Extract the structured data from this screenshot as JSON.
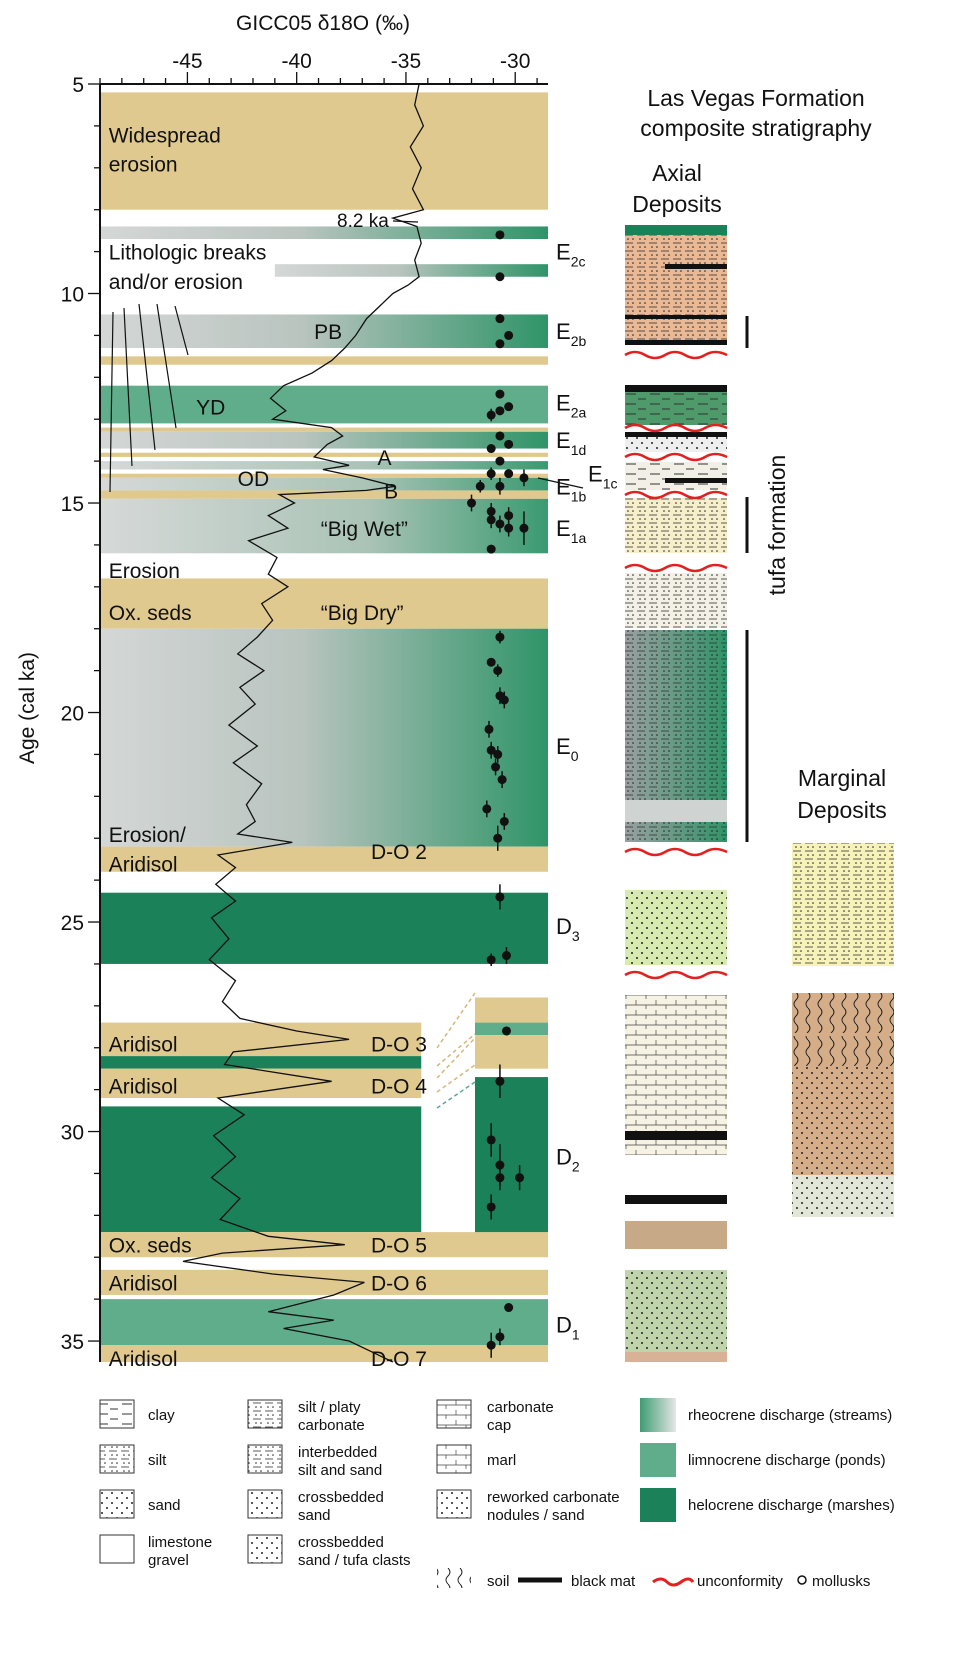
{
  "chart_data": {
    "type": "line",
    "title": "",
    "xlabel": "GICC05 δ18O (‰)",
    "ylabel": "Age (cal ka)",
    "xlim": [
      -49,
      -28.5
    ],
    "ylim": [
      5,
      35.5
    ],
    "x_ticks": [
      "-45",
      "-40",
      "-35",
      "-30"
    ],
    "y_ticks": [
      "5",
      "10",
      "15",
      "20",
      "25",
      "30",
      "35"
    ],
    "bands": [
      {
        "y0": 5.2,
        "y1": 8.0,
        "kind": "tan",
        "label": "Widespread erosion"
      },
      {
        "y0": 8.4,
        "y1": 8.7,
        "kind": "grad-dark",
        "x0": -49
      },
      {
        "y0": 9.3,
        "y1": 9.6,
        "kind": "grad-dark",
        "x0": -41
      },
      {
        "y0": 10.5,
        "y1": 11.3,
        "kind": "grad-dark"
      },
      {
        "y0": 11.5,
        "y1": 11.7,
        "kind": "tan"
      },
      {
        "y0": 12.2,
        "y1": 13.1,
        "kind": "limno"
      },
      {
        "y0": 13.2,
        "y1": 13.3,
        "kind": "tan"
      },
      {
        "y0": 13.3,
        "y1": 13.7,
        "kind": "grad-dark"
      },
      {
        "y0": 13.8,
        "y1": 13.9,
        "kind": "tan"
      },
      {
        "y0": 14.0,
        "y1": 14.2,
        "kind": "grad-light"
      },
      {
        "y0": 14.3,
        "y1": 14.4,
        "kind": "tan"
      },
      {
        "y0": 14.4,
        "y1": 14.7,
        "kind": "grad-light"
      },
      {
        "y0": 14.7,
        "y1": 14.9,
        "kind": "tan"
      },
      {
        "y0": 14.9,
        "y1": 16.2,
        "kind": "grad-light"
      },
      {
        "y0": 16.8,
        "y1": 18.0,
        "kind": "tan"
      },
      {
        "y0": 18.0,
        "y1": 23.2,
        "kind": "grad-dark"
      },
      {
        "y0": 23.2,
        "y1": 23.8,
        "kind": "tan"
      },
      {
        "y0": 24.3,
        "y1": 26.0,
        "kind": "helo"
      },
      {
        "y0": 27.4,
        "y1": 28.2,
        "kind": "tan",
        "x1": -34.3
      },
      {
        "y0": 28.2,
        "y1": 28.5,
        "kind": "helo",
        "x1": -34.3
      },
      {
        "y0": 28.5,
        "y1": 29.2,
        "kind": "tan",
        "x1": -34.3
      },
      {
        "y0": 29.4,
        "y1": 32.4,
        "kind": "helo",
        "x1": -34.3
      },
      {
        "y0": 32.4,
        "y1": 33.0,
        "kind": "tan"
      },
      {
        "y0": 33.3,
        "y1": 33.9,
        "kind": "tan"
      },
      {
        "y0": 34.0,
        "y1": 35.1,
        "kind": "limno"
      },
      {
        "y0": 35.1,
        "y1": 35.5,
        "kind": "tan"
      }
    ],
    "inset_bands": [
      {
        "y0": 26.8,
        "y1": 27.4,
        "kind": "tan"
      },
      {
        "y0": 27.4,
        "y1": 27.7,
        "kind": "limno"
      },
      {
        "y0": 27.7,
        "y1": 28.5,
        "kind": "tan"
      },
      {
        "y0": 28.7,
        "y1": 32.4,
        "kind": "helo"
      }
    ],
    "band_labels": [
      {
        "text": "Widespread",
        "x": -48.6,
        "y": 6.2
      },
      {
        "text": "erosion",
        "x": -48.6,
        "y": 6.9
      },
      {
        "text": "Lithologic breaks",
        "x": -48.6,
        "y": 9.0
      },
      {
        "text": "and/or erosion",
        "x": -48.6,
        "y": 9.7
      },
      {
        "text": "PB",
        "x": -39.2,
        "y": 10.9
      },
      {
        "text": "YD",
        "x": -44.6,
        "y": 12.7
      },
      {
        "text": "A",
        "x": -36.3,
        "y": 13.9
      },
      {
        "text": "OD",
        "x": -42.7,
        "y": 14.4
      },
      {
        "text": "B",
        "x": -36.0,
        "y": 14.7
      },
      {
        "text": "“Big Wet”",
        "x": -38.9,
        "y": 15.6
      },
      {
        "text": "Erosion",
        "x": -48.6,
        "y": 16.6
      },
      {
        "text": "Ox. seds",
        "x": -48.6,
        "y": 17.6
      },
      {
        "text": "“Big Dry”",
        "x": -38.9,
        "y": 17.6
      },
      {
        "text": "Erosion/",
        "x": -48.6,
        "y": 22.9
      },
      {
        "text": "Aridisol",
        "x": -48.6,
        "y": 23.6
      },
      {
        "text": "D-O 2",
        "x": -36.6,
        "y": 23.3
      },
      {
        "text": "Aridisol",
        "x": -48.6,
        "y": 27.9
      },
      {
        "text": "D-O 3",
        "x": -36.6,
        "y": 27.9
      },
      {
        "text": "Aridisol",
        "x": -48.6,
        "y": 28.9
      },
      {
        "text": "D-O 4",
        "x": -36.6,
        "y": 28.9
      },
      {
        "text": "Ox. seds",
        "x": -48.6,
        "y": 32.7
      },
      {
        "text": "D-O 5",
        "x": -36.6,
        "y": 32.7
      },
      {
        "text": "Aridisol",
        "x": -48.6,
        "y": 33.6
      },
      {
        "text": "D-O 6",
        "x": -36.6,
        "y": 33.6
      },
      {
        "text": "Aridisol",
        "x": -48.6,
        "y": 35.4
      },
      {
        "text": "D-O 7",
        "x": -36.6,
        "y": 35.4
      }
    ],
    "event_labels": [
      {
        "main": "E",
        "sub": "2c",
        "y": 9.0
      },
      {
        "main": "E",
        "sub": "2b",
        "y": 10.9
      },
      {
        "main": "E",
        "sub": "2a",
        "y": 12.6
      },
      {
        "main": "E",
        "sub": "1d",
        "y": 13.5
      },
      {
        "main": "E",
        "sub": "1c",
        "y": 14.3
      },
      {
        "main": "E",
        "sub": "1b",
        "y": 14.6
      },
      {
        "main": "E",
        "sub": "1a",
        "y": 15.6
      },
      {
        "main": "E",
        "sub": "0",
        "y": 20.8
      },
      {
        "main": "D",
        "sub": "3",
        "y": 25.1
      },
      {
        "main": "D",
        "sub": "2",
        "y": 30.6
      },
      {
        "main": "D",
        "sub": "1",
        "y": 34.6
      }
    ],
    "annotation_82": "8.2 ka",
    "series": [
      {
        "kind": "isotope",
        "points": [
          [
            -34.4,
            5.0
          ],
          [
            -34.6,
            5.5
          ],
          [
            -34.2,
            6.0
          ],
          [
            -34.8,
            6.5
          ],
          [
            -34.3,
            7.0
          ],
          [
            -34.7,
            7.5
          ],
          [
            -34.2,
            8.0
          ],
          [
            -35.6,
            8.2
          ],
          [
            -34.5,
            8.4
          ],
          [
            -34.3,
            8.8
          ],
          [
            -34.6,
            9.2
          ],
          [
            -34.4,
            9.6
          ],
          [
            -34.9,
            9.8
          ],
          [
            -35.6,
            10.0
          ],
          [
            -36.2,
            10.3
          ],
          [
            -36.8,
            10.6
          ],
          [
            -37.3,
            11.0
          ],
          [
            -37.8,
            11.3
          ],
          [
            -38.4,
            11.6
          ],
          [
            -39.3,
            11.9
          ],
          [
            -40.6,
            12.2
          ],
          [
            -41.2,
            12.5
          ],
          [
            -40.5,
            12.8
          ],
          [
            -41.1,
            13.0
          ],
          [
            -38.4,
            13.2
          ],
          [
            -37.9,
            13.4
          ],
          [
            -38.6,
            13.6
          ],
          [
            -39.2,
            13.9
          ],
          [
            -37.6,
            14.1
          ],
          [
            -38.8,
            14.2
          ],
          [
            -37.0,
            14.4
          ],
          [
            -35.5,
            14.6
          ],
          [
            -36.8,
            14.7
          ],
          [
            -40.8,
            14.8
          ],
          [
            -40.1,
            15.0
          ],
          [
            -41.3,
            15.3
          ],
          [
            -40.4,
            15.6
          ],
          [
            -42.2,
            15.9
          ],
          [
            -40.9,
            16.3
          ],
          [
            -41.3,
            16.7
          ],
          [
            -40.4,
            17.0
          ],
          [
            -41.6,
            17.4
          ],
          [
            -41.1,
            17.8
          ],
          [
            -41.8,
            18.2
          ],
          [
            -42.7,
            18.6
          ],
          [
            -41.5,
            19.0
          ],
          [
            -42.6,
            19.4
          ],
          [
            -41.9,
            19.8
          ],
          [
            -43.1,
            20.3
          ],
          [
            -41.8,
            20.8
          ],
          [
            -42.9,
            21.2
          ],
          [
            -41.6,
            21.7
          ],
          [
            -42.3,
            22.2
          ],
          [
            -41.9,
            22.6
          ],
          [
            -42.7,
            22.9
          ],
          [
            -40.2,
            23.1
          ],
          [
            -43.6,
            23.4
          ],
          [
            -42.8,
            23.7
          ],
          [
            -43.7,
            24.1
          ],
          [
            -42.8,
            24.5
          ],
          [
            -43.9,
            24.9
          ],
          [
            -43.1,
            25.4
          ],
          [
            -44.0,
            25.9
          ],
          [
            -42.8,
            26.4
          ],
          [
            -43.4,
            26.9
          ],
          [
            -42.6,
            27.3
          ],
          [
            -40.0,
            27.6
          ],
          [
            -37.6,
            27.8
          ],
          [
            -42.9,
            28.1
          ],
          [
            -43.3,
            28.4
          ],
          [
            -38.4,
            28.8
          ],
          [
            -43.6,
            29.2
          ],
          [
            -42.4,
            29.6
          ],
          [
            -43.8,
            30.1
          ],
          [
            -42.8,
            30.6
          ],
          [
            -43.9,
            31.1
          ],
          [
            -42.6,
            31.6
          ],
          [
            -43.5,
            32.1
          ],
          [
            -41.3,
            32.5
          ],
          [
            -37.8,
            32.7
          ],
          [
            -43.4,
            32.9
          ],
          [
            -45.2,
            33.1
          ],
          [
            -41.1,
            33.4
          ],
          [
            -36.9,
            33.6
          ],
          [
            -38.3,
            33.9
          ],
          [
            -41.3,
            34.3
          ],
          [
            -38.3,
            34.5
          ],
          [
            -40.6,
            34.7
          ],
          [
            -37.6,
            35.0
          ],
          [
            -36.4,
            35.3
          ],
          [
            -35.6,
            35.5
          ]
        ]
      },
      {
        "kind": "dates",
        "points": [
          [
            -30.7,
            8.6,
            0.05
          ],
          [
            -30.7,
            9.6,
            0.05
          ],
          [
            -30.7,
            10.6,
            0.05
          ],
          [
            -30.7,
            11.2,
            0.1
          ],
          [
            -30.3,
            11.0,
            0.1
          ],
          [
            -30.7,
            12.4,
            0.1
          ],
          [
            -31.1,
            12.9,
            0.15
          ],
          [
            -30.7,
            12.8,
            0.1
          ],
          [
            -30.3,
            12.7,
            0.1
          ],
          [
            -30.7,
            13.4,
            0.1
          ],
          [
            -31.1,
            13.7,
            0.1
          ],
          [
            -30.3,
            13.6,
            0.1
          ],
          [
            -30.7,
            14.0,
            0.1
          ],
          [
            -31.1,
            14.3,
            0.15
          ],
          [
            -30.3,
            14.3,
            0.1
          ],
          [
            -29.6,
            14.4,
            0.2
          ],
          [
            -31.6,
            14.6,
            0.15
          ],
          [
            -30.7,
            14.6,
            0.2
          ],
          [
            -32.0,
            15.0,
            0.2
          ],
          [
            -31.1,
            15.2,
            0.2
          ],
          [
            -30.3,
            15.3,
            0.2
          ],
          [
            -30.7,
            15.5,
            0.2
          ],
          [
            -31.1,
            15.4,
            0.2
          ],
          [
            -30.3,
            15.6,
            0.2
          ],
          [
            -29.6,
            15.6,
            0.4
          ],
          [
            -31.1,
            16.1,
            0.1
          ],
          [
            -30.7,
            18.2,
            0.15
          ],
          [
            -31.1,
            18.8,
            0.1
          ],
          [
            -30.8,
            19.0,
            0.15
          ],
          [
            -30.7,
            19.6,
            0.2
          ],
          [
            -30.5,
            19.7,
            0.2
          ],
          [
            -31.2,
            20.4,
            0.2
          ],
          [
            -31.1,
            20.9,
            0.2
          ],
          [
            -30.8,
            21.0,
            0.2
          ],
          [
            -30.9,
            21.3,
            0.2
          ],
          [
            -30.6,
            21.6,
            0.2
          ],
          [
            -31.3,
            22.3,
            0.2
          ],
          [
            -30.5,
            22.6,
            0.2
          ],
          [
            -30.8,
            23.0,
            0.3
          ],
          [
            -30.7,
            24.4,
            0.3
          ],
          [
            -31.1,
            25.9,
            0.15
          ],
          [
            -30.4,
            25.8,
            0.2
          ],
          [
            -30.4,
            27.6,
            0.1
          ],
          [
            -30.7,
            28.8,
            0.4
          ],
          [
            -31.1,
            30.2,
            0.4
          ],
          [
            -30.7,
            30.8,
            0.5
          ],
          [
            -30.7,
            31.1,
            0.3
          ],
          [
            -29.8,
            31.1,
            0.3
          ],
          [
            -31.1,
            31.8,
            0.3
          ],
          [
            -30.3,
            34.2,
            0.1
          ],
          [
            -30.7,
            34.9,
            0.2
          ],
          [
            -31.1,
            35.1,
            0.3
          ]
        ]
      }
    ]
  },
  "right_panel": {
    "title_line1": "Las Vegas Formation",
    "title_line2": "composite stratigraphy",
    "axial_line1": "Axial",
    "axial_line2": "Deposits",
    "marginal_line1": "Marginal",
    "marginal_line2": "Deposits",
    "tufa_label": "tufa formation"
  },
  "legend": {
    "col1": [
      {
        "l1": "clay",
        "l2": ""
      },
      {
        "l1": "silt",
        "l2": ""
      },
      {
        "l1": "sand",
        "l2": ""
      },
      {
        "l1": "limestone",
        "l2": "gravel"
      }
    ],
    "col2": [
      {
        "l1": "silt / platy",
        "l2": "carbonate"
      },
      {
        "l1": "interbedded",
        "l2": "silt and sand"
      },
      {
        "l1": "crossbedded",
        "l2": "sand"
      },
      {
        "l1": "crossbedded",
        "l2": "sand / tufa clasts"
      }
    ],
    "col3": [
      {
        "l1": "carbonate",
        "l2": "cap"
      },
      {
        "l1": "marl",
        "l2": ""
      },
      {
        "l1": "reworked carbonate",
        "l2": "nodules / sand"
      }
    ],
    "col4": [
      {
        "l1": "rheocrene discharge (streams)"
      },
      {
        "l1": "limnocrene discharge (ponds)"
      },
      {
        "l1": "helocrene discharge (marshes)"
      }
    ],
    "bottom": {
      "soil": "soil",
      "black_mat": "black mat",
      "unconformity": "unconformity",
      "mollusks": "mollusks"
    }
  },
  "colors": {
    "tan": "#e0c98e",
    "limno": "#5fad8a",
    "helo": "#1b8158",
    "grad_light": "#d6d9d8",
    "axis": "#111111"
  }
}
